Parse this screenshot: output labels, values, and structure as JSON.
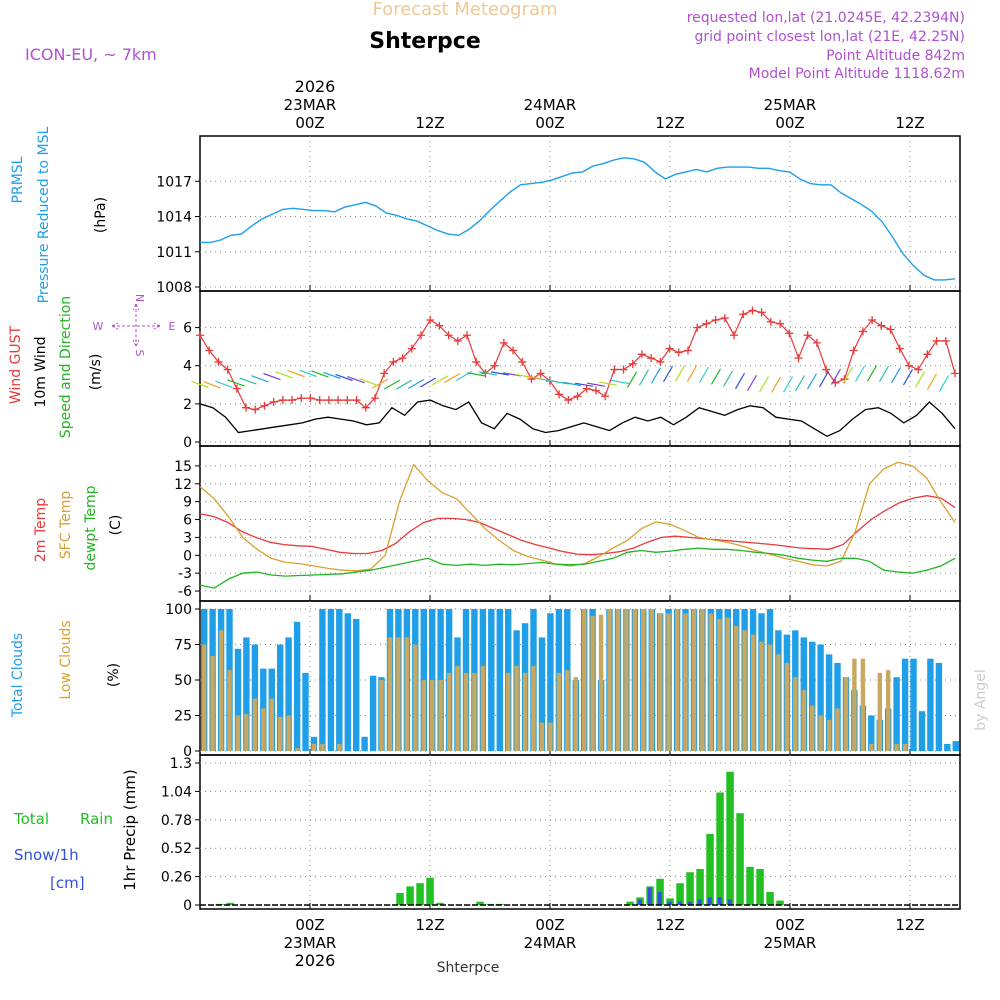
{
  "header": {
    "subtitle": "Forecast Meteogram",
    "location": "Shterpce",
    "model": "ICON-EU, ~ 7km",
    "requested": "requested lon,lat (21.0245E, 42.2394N)",
    "grid_point": "grid point closest lon,lat (21E, 42.25N)",
    "point_altitude": "Point Altitude 842m",
    "model_altitude": "Model Point Altitude 1118.62m",
    "footer": "Shterpce",
    "watermark": "by Angel"
  },
  "time_axis": {
    "top_year": "2026",
    "bottom_year": "2026",
    "ticks": [
      {
        "hour": 24,
        "time": "00Z",
        "date": "23MAR"
      },
      {
        "hour": 36,
        "time": "12Z",
        "date": ""
      },
      {
        "hour": 48,
        "time": "00Z",
        "date": "24MAR"
      },
      {
        "hour": 60,
        "time": "12Z",
        "date": ""
      },
      {
        "hour": 72,
        "time": "00Z",
        "date": "25MAR"
      },
      {
        "hour": 84,
        "time": "12Z",
        "date": ""
      }
    ],
    "start_hour": 13,
    "end_hour": 89
  },
  "panels": {
    "pressure": {
      "label1": "PRMSL",
      "label2": "Pressure Reduced to MSL",
      "unit": "(hPa)",
      "color1": "#1e9fe8",
      "color2": "#1e9fe8"
    },
    "wind": {
      "label1": "Wind GUST",
      "label2": "10m Wind",
      "label3": "Speed and Direction",
      "unit": "(m/s)",
      "compass_w": "W",
      "compass_e": "E",
      "compass_n": "N",
      "compass_s": "S",
      "color_gust": "#e83a3a",
      "color_wind": "#000000",
      "color_dir": "#22b422",
      "color_compass": "#b050d0"
    },
    "temp": {
      "label1": "2m Temp",
      "label2": "SFC Temp",
      "label3": "dewpt Temp",
      "unit": "(C)",
      "color1": "#e83a3a",
      "color2": "#d9a030",
      "color3": "#22b422"
    },
    "clouds": {
      "label1": "Total Clouds",
      "label2": "Low Clouds",
      "unit": "(%)",
      "color1": "#1e9fe8",
      "color2": "#c8a860"
    },
    "precip": {
      "label1": "Total",
      "label1b": "Rain",
      "label2": "Snow/1h",
      "label3": "[cm]",
      "axis": "1hr Precip (mm)",
      "color_rain": "#22c022",
      "color_snow": "#3050e0"
    }
  },
  "chart_data": [
    {
      "type": "line",
      "title": "PRMSL Pressure Reduced to MSL",
      "ylabel": "hPa",
      "ylim": [
        1008,
        1020
      ],
      "yticks": [
        1008,
        1011,
        1014,
        1017
      ],
      "x_start_hour": 13,
      "x_end_hour": 89,
      "series": [
        {
          "name": "PRMSL",
          "color": "#1e9fe8",
          "values": [
            1011.8,
            1011.8,
            1012.0,
            1012.4,
            1012.5,
            1013.2,
            1013.8,
            1014.2,
            1014.6,
            1014.7,
            1014.6,
            1014.5,
            1014.5,
            1014.4,
            1014.8,
            1015.0,
            1015.2,
            1014.9,
            1014.3,
            1014.1,
            1013.8,
            1013.6,
            1013.2,
            1012.8,
            1012.5,
            1012.4,
            1012.9,
            1013.6,
            1014.5,
            1015.3,
            1016.1,
            1016.7,
            1016.8,
            1016.9,
            1017.1,
            1017.4,
            1017.7,
            1017.8,
            1018.3,
            1018.5,
            1018.8,
            1019.0,
            1018.9,
            1018.6,
            1017.8,
            1017.2,
            1017.6,
            1017.8,
            1018.0,
            1017.8,
            1018.1,
            1018.2,
            1018.2,
            1018.2,
            1018.1,
            1018.1,
            1017.9,
            1017.8,
            1017.2,
            1016.8,
            1016.7,
            1016.7,
            1016.0,
            1015.5,
            1015.0,
            1014.4,
            1013.5,
            1012.2,
            1010.8,
            1009.8,
            1009.0,
            1008.6,
            1008.6,
            1008.7
          ]
        }
      ]
    },
    {
      "type": "line",
      "title": "Wind GUST / 10m Wind Speed and Direction",
      "ylabel": "m/s",
      "ylim": [
        0,
        7.5
      ],
      "yticks": [
        0,
        2,
        4,
        6
      ],
      "x_start_hour": 13,
      "x_end_hour": 89,
      "series": [
        {
          "name": "Wind GUST",
          "color": "#e83a3a",
          "values": [
            5.6,
            4.8,
            4.2,
            3.8,
            2.8,
            1.8,
            1.7,
            1.9,
            2.1,
            2.2,
            2.2,
            2.3,
            2.3,
            2.2,
            2.2,
            2.2,
            2.2,
            2.2,
            1.8,
            2.3,
            3.6,
            4.2,
            4.4,
            4.9,
            5.6,
            6.4,
            6.1,
            5.6,
            5.3,
            5.6,
            4.2,
            3.6,
            4.0,
            5.2,
            4.8,
            4.2,
            3.3,
            3.6,
            3.2,
            2.5,
            2.2,
            2.4,
            2.8,
            2.7,
            2.4,
            3.8,
            3.8,
            4.1,
            4.6,
            4.4,
            4.2,
            4.9,
            4.7,
            4.8,
            6.0,
            6.2,
            6.4,
            6.5,
            5.6,
            6.7,
            6.9,
            6.8,
            6.3,
            6.2,
            5.7,
            4.4,
            5.6,
            5.2,
            3.8,
            3.1,
            3.3,
            4.8,
            5.8,
            6.4,
            6.1,
            5.9,
            4.9,
            4.0,
            3.8,
            4.6,
            5.3,
            5.3,
            3.6
          ],
          "note": "values spaced one per hour starting at hour 13, last sampled at hour ~89"
        },
        {
          "name": "10m Wind",
          "color": "#000000",
          "values": [
            2.0,
            1.8,
            1.3,
            0.5,
            0.6,
            0.7,
            0.8,
            0.9,
            1.0,
            1.2,
            1.3,
            1.2,
            1.1,
            0.9,
            1.0,
            1.8,
            1.4,
            2.1,
            2.2,
            1.9,
            1.7,
            2.1,
            1.0,
            0.7,
            1.5,
            1.2,
            0.7,
            0.5,
            0.6,
            0.8,
            1.0,
            0.8,
            0.6,
            1.0,
            1.3,
            1.1,
            1.3,
            0.9,
            1.3,
            1.8,
            1.6,
            1.4,
            1.7,
            1.9,
            1.8,
            1.3,
            1.2,
            1.1,
            0.7,
            0.3,
            0.6,
            1.2,
            1.7,
            1.8,
            1.5,
            1.0,
            1.4,
            2.1,
            1.5,
            0.7
          ],
          "note": "approximate values over the same time span"
        }
      ]
    },
    {
      "type": "line",
      "title": "Temperatures",
      "ylabel": "C",
      "ylim": [
        -7,
        17
      ],
      "yticks": [
        -6,
        -3,
        0,
        3,
        6,
        9,
        12,
        15
      ],
      "x_start_hour": 13,
      "x_end_hour": 89,
      "series": [
        {
          "name": "2m Temp",
          "color": "#e83a3a",
          "values": [
            7,
            6.5,
            5.5,
            4,
            3,
            2.2,
            1.8,
            1.6,
            1.5,
            1.0,
            0.5,
            0.3,
            0.3,
            0.8,
            2,
            4,
            5.5,
            6.2,
            6.2,
            6.0,
            5.5,
            4.5,
            3.5,
            2.5,
            1.8,
            1.2,
            0.6,
            0.2,
            0.1,
            0.3,
            0.6,
            1.2,
            2.2,
            3.0,
            3.2,
            3.0,
            2.8,
            2.6,
            2.4,
            2.2,
            2.0,
            1.8,
            1.5,
            1.2,
            1.1,
            1.0,
            1.8,
            4,
            6,
            7.5,
            8.8,
            9.6,
            10,
            9.6,
            8
          ]
        },
        {
          "name": "SFC Temp",
          "color": "#d9a030",
          "values": [
            11.5,
            9.5,
            6.5,
            3,
            1,
            -0.5,
            -1.2,
            -1.4,
            -1.8,
            -2.2,
            -2.5,
            -2.6,
            -2.3,
            0,
            9,
            15.2,
            12.5,
            10.5,
            9.5,
            7,
            4.5,
            2.5,
            0.8,
            -0.2,
            -0.8,
            -1.5,
            -1.8,
            -1.4,
            -0.2,
            1.2,
            2.5,
            4.5,
            5.6,
            5.2,
            4.2,
            3.0,
            2.6,
            2.2,
            1.6,
            0.8,
            0.2,
            -0.5,
            -1.0,
            -1.6,
            -1.8,
            -1.0,
            4,
            12,
            14.5,
            15.6,
            15.0,
            13,
            9,
            5.5
          ]
        },
        {
          "name": "dewpt Temp",
          "color": "#22b422",
          "values": [
            -5,
            -5.5,
            -4,
            -3,
            -2.8,
            -3.3,
            -3.5,
            -3.4,
            -3.3,
            -3.2,
            -3.1,
            -2.8,
            -2.5,
            -2.0,
            -1.5,
            -1.0,
            -0.5,
            -1.5,
            -1.7,
            -1.5,
            -1.7,
            -1.5,
            -1.6,
            -1.4,
            -1.2,
            -1.5,
            -1.6,
            -1.5,
            -1.0,
            -0.5,
            0.5,
            0.8,
            0.5,
            0.7,
            1.0,
            1.2,
            1.0,
            1.0,
            0.8,
            0.5,
            0.3,
            0.0,
            -0.5,
            -0.8,
            -1.0,
            -0.5,
            -0.5,
            -1.0,
            -2.5,
            -2.8,
            -3.0,
            -2.5,
            -1.8,
            -0.5
          ]
        }
      ]
    },
    {
      "type": "bar",
      "title": "Total Clouds / Low Clouds",
      "ylabel": "%",
      "ylim": [
        0,
        100
      ],
      "yticks": [
        0,
        25,
        50,
        75,
        100
      ],
      "x_start_hour": 13,
      "x_end_hour": 89,
      "series": [
        {
          "name": "Total Clouds",
          "color": "#1e9fe8",
          "values": [
            100,
            100,
            100,
            100,
            72,
            80,
            75,
            58,
            58,
            75,
            80,
            91,
            55,
            10,
            100,
            100,
            100,
            97,
            93,
            10,
            53,
            52,
            100,
            100,
            100,
            100,
            100,
            100,
            100,
            100,
            80,
            100,
            100,
            100,
            100,
            100,
            100,
            85,
            90,
            100,
            80,
            97,
            100,
            100,
            50,
            100,
            100,
            50,
            100,
            100,
            100,
            100,
            100,
            100,
            97,
            100,
            100,
            100,
            100,
            100,
            100,
            100,
            100,
            100,
            100,
            100,
            97,
            100,
            85,
            82,
            85,
            80,
            77,
            75,
            68,
            62,
            52,
            43,
            32,
            25,
            22,
            30,
            52,
            65,
            65,
            28,
            65,
            62,
            5,
            7
          ]
        },
        {
          "name": "Low Clouds",
          "color": "#c8a860",
          "values": [
            75,
            67,
            85,
            57,
            25,
            26,
            37,
            30,
            37,
            24,
            25,
            2,
            0,
            5,
            5,
            0,
            5,
            0,
            0,
            0,
            0,
            50,
            80,
            80,
            80,
            75,
            50,
            50,
            50,
            55,
            60,
            55,
            55,
            60,
            0,
            0,
            55,
            60,
            55,
            60,
            20,
            20,
            55,
            57,
            52,
            100,
            95,
            96,
            100,
            100,
            100,
            100,
            100,
            100,
            97,
            97,
            100,
            97,
            100,
            100,
            97,
            93,
            94,
            88,
            85,
            82,
            77,
            75,
            68,
            62,
            52,
            43,
            32,
            25,
            22,
            30,
            52,
            65,
            65,
            5,
            55,
            57,
            5,
            5
          ]
        }
      ]
    },
    {
      "type": "bar",
      "title": "1hr Precip",
      "ylabel": "1hr Precip (mm)",
      "ylim": [
        0,
        1.3
      ],
      "yticks": [
        0,
        0.26,
        0.52,
        0.78,
        1.04,
        1.3
      ],
      "x_start_hour": 13,
      "x_end_hour": 89,
      "series": [
        {
          "name": "Total Rain",
          "color": "#22c022",
          "hours": [
            15,
            16,
            33,
            34,
            35,
            36,
            37,
            41,
            42,
            43,
            56,
            57,
            58,
            59,
            60,
            61,
            62,
            63,
            64,
            65,
            66,
            67,
            68,
            69,
            70,
            71
          ],
          "values": [
            0.01,
            0.02,
            0.11,
            0.17,
            0.2,
            0.25,
            0.02,
            0.03,
            0.01,
            0.01,
            0.03,
            0.07,
            0.17,
            0.24,
            0.06,
            0.2,
            0.3,
            0.33,
            0.65,
            1.03,
            1.22,
            0.84,
            0.35,
            0.33,
            0.12,
            0.04
          ]
        },
        {
          "name": "Snow/1h",
          "color": "#3050e0",
          "hours": [
            57,
            58,
            59,
            60,
            61,
            62,
            63,
            64,
            65,
            66
          ],
          "values": [
            0.05,
            0.16,
            0.12,
            0.03,
            0.03,
            0.03,
            0.05,
            0.07,
            0.07,
            0.05
          ]
        }
      ]
    }
  ]
}
